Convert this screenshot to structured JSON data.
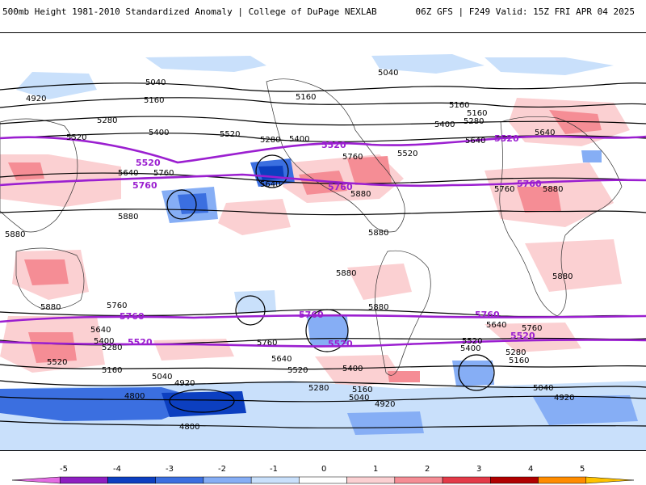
{
  "header": {
    "title_left": "500mb Height 1981-2010 Standardized Anomaly | College of DuPage NEXLAB",
    "title_right": "06Z GFS | F249 Valid: 15Z FRI APR 04 2025"
  },
  "colorbar": {
    "labels": [
      "-5",
      "-4",
      "-3",
      "-2",
      "-1",
      "0",
      "1",
      "2",
      "3",
      "4",
      "5"
    ],
    "colors": [
      "#e36ce3",
      "#8e1fc1",
      "#0c3fc0",
      "#3b6fe0",
      "#86aef5",
      "#c9e0fb",
      "#ffffff",
      "#fbd0d2",
      "#f58d95",
      "#e33a48",
      "#b00000",
      "#ff8c00",
      "#ffc300"
    ]
  },
  "map": {
    "contour_labels_black": [
      "5040",
      "4920",
      "5160",
      "5280",
      "5400",
      "5520",
      "5640",
      "5760",
      "5880",
      "4800"
    ],
    "contour_labels_purple": [
      "5520",
      "5760"
    ],
    "colors": {
      "purple_contour": "#9b1fd0",
      "black_contour": "#000000",
      "positive_light": "#fbd0d2",
      "positive_mid": "#f58d95",
      "positive_strong": "#e33a48",
      "negative_light": "#c9e0fb",
      "negative_mid": "#86aef5",
      "negative_strong": "#3b6fe0",
      "negative_deep": "#0c3fc0"
    }
  }
}
